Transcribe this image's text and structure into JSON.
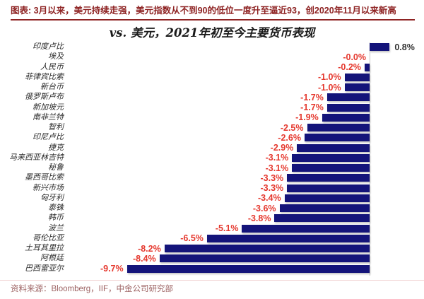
{
  "page": {
    "caption": "图表: 3月以来，美元持续走强，美元指数从不到90的低位一度升至逼近93，创2020年11月以来新高",
    "source": "资料来源：Bloomberg，IIF，中金公司研究部"
  },
  "colors": {
    "caption": "#8e2323",
    "bar": "#14147a",
    "negative_label": "#e5382e",
    "positive_label": "#333333",
    "axis_line": "#c4c4c4",
    "source_text": "#9d6363",
    "source_rule": "#f2d4d4"
  },
  "chart_data": {
    "type": "bar",
    "orientation": "horizontal",
    "title": "vs. 美元，2021年初至今主要货币表现",
    "unit": "%",
    "xlim": [
      -10.5,
      1.5
    ],
    "grid": false,
    "legend_position": "none",
    "categories": [
      "印度卢比",
      "埃及",
      "人民币",
      "菲律宾比索",
      "新台币",
      "俄罗斯卢布",
      "新加坡元",
      "南非兰特",
      "智利",
      "印尼卢比",
      "捷克",
      "马来西亚林吉特",
      "秘鲁",
      "墨西哥比索",
      "新兴市场",
      "匈牙利",
      "泰铢",
      "韩币",
      "波兰",
      "哥伦比亚",
      "土耳其里拉",
      "阿根廷",
      "巴西雷亚尔"
    ],
    "values": [
      0.8,
      -0.0,
      -0.2,
      -1.0,
      -1.0,
      -1.7,
      -1.7,
      -1.9,
      -2.5,
      -2.6,
      -2.9,
      -3.1,
      -3.1,
      -3.3,
      -3.3,
      -3.4,
      -3.6,
      -3.8,
      -5.1,
      -6.5,
      -8.2,
      -8.4,
      -9.7
    ],
    "value_labels": [
      "0.8%",
      "-0.0%",
      "-0.2%",
      "-1.0%",
      "-1.0%",
      "-1.7%",
      "-1.7%",
      "-1.9%",
      "-2.5%",
      "-2.6%",
      "-2.9%",
      "-3.1%",
      "-3.1%",
      "-3.3%",
      "-3.3%",
      "-3.4%",
      "-3.6%",
      "-3.8%",
      "-5.1%",
      "-6.5%",
      "-8.2%",
      "-8.4%",
      "-9.7%"
    ]
  }
}
